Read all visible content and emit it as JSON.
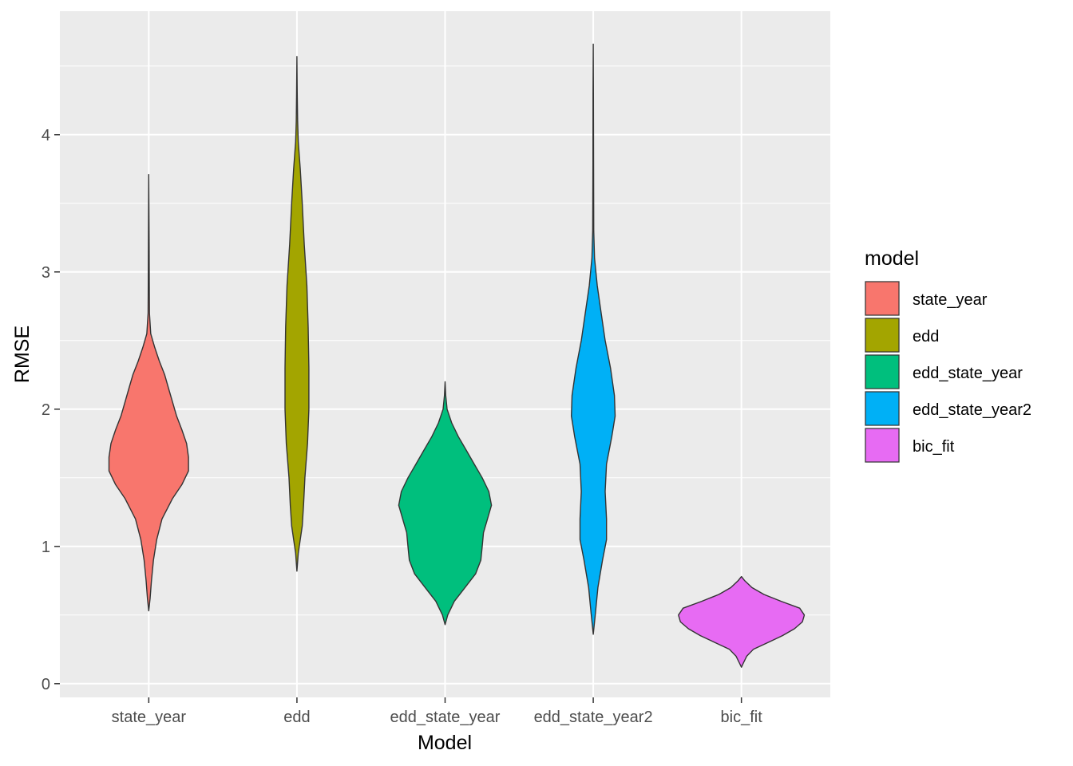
{
  "chart_data": {
    "type": "violin",
    "title": "",
    "xlabel": "Model",
    "ylabel": "RMSE",
    "categories": [
      "state_year",
      "edd",
      "edd_state_year",
      "edd_state_year2",
      "bic_fit"
    ],
    "ylim": [
      -0.1,
      4.9
    ],
    "yticks": [
      0,
      1,
      2,
      3,
      4
    ],
    "grid": true,
    "legend": {
      "title": "model",
      "position": "right",
      "entries": [
        "state_year",
        "edd",
        "edd_state_year",
        "edd_state_year2",
        "bic_fit"
      ]
    },
    "series": [
      {
        "name": "state_year",
        "color": "#F8766D",
        "min": 0.53,
        "max": 3.71,
        "density": [
          [
            0.53,
            0.0
          ],
          [
            0.62,
            0.02
          ],
          [
            0.75,
            0.04
          ],
          [
            0.9,
            0.07
          ],
          [
            1.05,
            0.12
          ],
          [
            1.2,
            0.2
          ],
          [
            1.35,
            0.36
          ],
          [
            1.45,
            0.5
          ],
          [
            1.55,
            0.6
          ],
          [
            1.65,
            0.6
          ],
          [
            1.75,
            0.57
          ],
          [
            1.85,
            0.5
          ],
          [
            1.95,
            0.42
          ],
          [
            2.05,
            0.36
          ],
          [
            2.15,
            0.3
          ],
          [
            2.25,
            0.24
          ],
          [
            2.35,
            0.16
          ],
          [
            2.45,
            0.09
          ],
          [
            2.55,
            0.03
          ],
          [
            2.7,
            0.01
          ],
          [
            2.9,
            0.008
          ],
          [
            3.2,
            0.005
          ],
          [
            3.71,
            0.0
          ]
        ]
      },
      {
        "name": "edd",
        "color": "#A3A500",
        "min": 0.82,
        "max": 4.57,
        "density": [
          [
            0.82,
            0.0
          ],
          [
            0.95,
            0.02
          ],
          [
            1.05,
            0.05
          ],
          [
            1.15,
            0.08
          ],
          [
            1.3,
            0.1
          ],
          [
            1.5,
            0.12
          ],
          [
            1.75,
            0.16
          ],
          [
            2.0,
            0.18
          ],
          [
            2.3,
            0.18
          ],
          [
            2.6,
            0.17
          ],
          [
            2.9,
            0.15
          ],
          [
            3.2,
            0.11
          ],
          [
            3.5,
            0.08
          ],
          [
            3.75,
            0.05
          ],
          [
            3.95,
            0.02
          ],
          [
            4.1,
            0.01
          ],
          [
            4.3,
            0.005
          ],
          [
            4.57,
            0.0
          ]
        ]
      },
      {
        "name": "edd_state_year",
        "color": "#00BF7D",
        "min": 0.43,
        "max": 2.2,
        "density": [
          [
            0.43,
            0.0
          ],
          [
            0.5,
            0.04
          ],
          [
            0.6,
            0.14
          ],
          [
            0.7,
            0.3
          ],
          [
            0.8,
            0.46
          ],
          [
            0.9,
            0.54
          ],
          [
            1.0,
            0.56
          ],
          [
            1.1,
            0.58
          ],
          [
            1.2,
            0.64
          ],
          [
            1.3,
            0.7
          ],
          [
            1.4,
            0.66
          ],
          [
            1.5,
            0.56
          ],
          [
            1.6,
            0.44
          ],
          [
            1.7,
            0.32
          ],
          [
            1.8,
            0.2
          ],
          [
            1.9,
            0.1
          ],
          [
            2.0,
            0.03
          ],
          [
            2.1,
            0.01
          ],
          [
            2.2,
            0.0
          ]
        ]
      },
      {
        "name": "edd_state_year2",
        "color": "#00B0F6",
        "min": 0.36,
        "max": 4.66,
        "density": [
          [
            0.36,
            0.0
          ],
          [
            0.5,
            0.03
          ],
          [
            0.7,
            0.07
          ],
          [
            0.9,
            0.14
          ],
          [
            1.05,
            0.2
          ],
          [
            1.2,
            0.2
          ],
          [
            1.4,
            0.18
          ],
          [
            1.6,
            0.2
          ],
          [
            1.8,
            0.28
          ],
          [
            1.95,
            0.33
          ],
          [
            2.1,
            0.32
          ],
          [
            2.3,
            0.26
          ],
          [
            2.5,
            0.18
          ],
          [
            2.7,
            0.12
          ],
          [
            2.9,
            0.06
          ],
          [
            3.1,
            0.02
          ],
          [
            3.3,
            0.008
          ],
          [
            3.8,
            0.005
          ],
          [
            4.3,
            0.003
          ],
          [
            4.66,
            0.0
          ]
        ]
      },
      {
        "name": "bic_fit",
        "color": "#E76BF3",
        "min": 0.12,
        "max": 0.78,
        "density": [
          [
            0.12,
            0.0
          ],
          [
            0.15,
            0.03
          ],
          [
            0.2,
            0.08
          ],
          [
            0.25,
            0.18
          ],
          [
            0.3,
            0.4
          ],
          [
            0.35,
            0.62
          ],
          [
            0.4,
            0.8
          ],
          [
            0.45,
            0.92
          ],
          [
            0.5,
            0.95
          ],
          [
            0.55,
            0.88
          ],
          [
            0.6,
            0.6
          ],
          [
            0.65,
            0.34
          ],
          [
            0.7,
            0.16
          ],
          [
            0.75,
            0.05
          ],
          [
            0.78,
            0.0
          ]
        ]
      }
    ]
  }
}
